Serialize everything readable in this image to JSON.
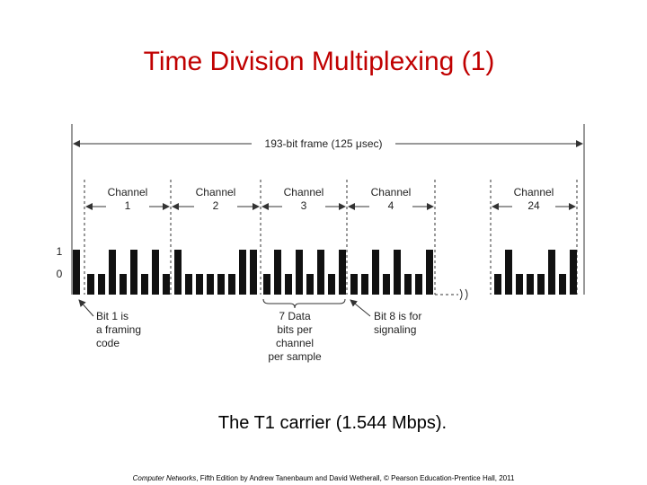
{
  "title": "Time Division Multiplexing (1)",
  "diagram": {
    "frame_label": "193-bit frame  (125 μsec)",
    "channels": [
      {
        "label": "Channel",
        "number": "1"
      },
      {
        "label": "Channel",
        "number": "2"
      },
      {
        "label": "Channel",
        "number": "3"
      },
      {
        "label": "Channel",
        "number": "4"
      },
      {
        "label": "Channel",
        "number": "24"
      }
    ],
    "levels": [
      "1",
      "0"
    ],
    "annotations": [
      [
        "Bit 1 is",
        "a framing",
        "code"
      ],
      [
        "7 Data",
        "bits per",
        "channel",
        "per sample"
      ],
      [
        "Bit 8 is for",
        "signaling"
      ]
    ]
  },
  "caption": "The T1 carrier (1.544 Mbps).",
  "footer": {
    "book": "Computer Networks",
    "rest": ", Fifth Edition by Andrew Tanenbaum and David Wetherall, © Pearson Education-Prentice Hall, 2011"
  }
}
